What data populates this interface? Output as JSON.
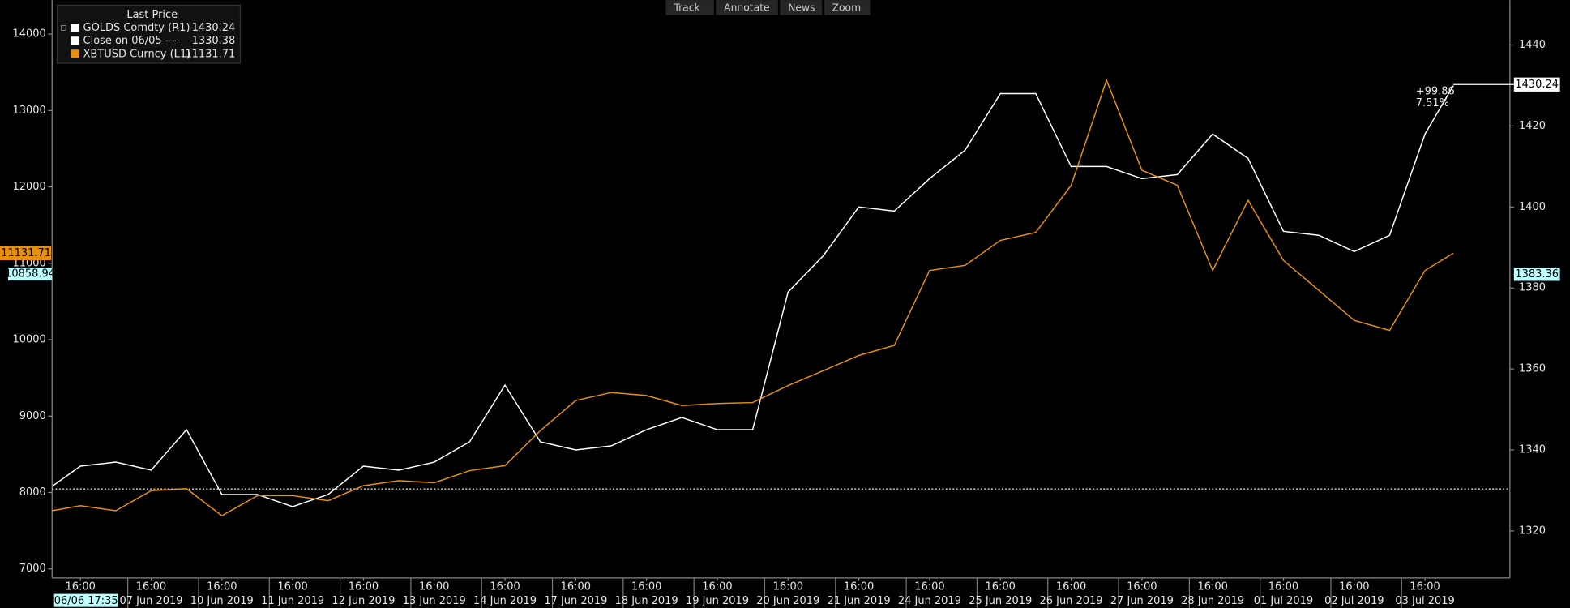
{
  "toolbar": [
    "Track",
    "Annotate",
    "News",
    "Zoom"
  ],
  "chart_data": {
    "type": "line",
    "legend_title": "Last Price",
    "x": [
      -0.4,
      0,
      0.5,
      1,
      1.5,
      2,
      2.5,
      3,
      3.5,
      4,
      4.5,
      5,
      5.5,
      6,
      6.5,
      7,
      7.5,
      8,
      8.5,
      9,
      9.5,
      10,
      10.5,
      11,
      11.5,
      12,
      12.5,
      13,
      13.5,
      14,
      14.5,
      15,
      15.5,
      16,
      16.5,
      17,
      17.5,
      18,
      18.5,
      19,
      19.4
    ],
    "series": [
      {
        "name": "GOLDS Comdty  (R1)",
        "color": "#ffffff",
        "axis": "y2",
        "last": 1430.24,
        "values": [
          1331,
          1336,
          1337,
          1335,
          1345,
          1329,
          1329,
          1326,
          1329,
          1336,
          1335,
          1337,
          1342,
          1356,
          1342,
          1340,
          1341,
          1345,
          1348,
          1345,
          1345,
          1379,
          1388,
          1400,
          1399,
          1407,
          1414,
          1428,
          1428,
          1410,
          1410,
          1407,
          1408,
          1418,
          1412,
          1394,
          1393,
          1389,
          1393,
          1418,
          1430
        ]
      },
      {
        "name": "XBTUSD Curncy  (L1)",
        "color": "#e8900c",
        "last": 11131.71,
        "values": [
          7762,
          7827,
          7762,
          8024,
          8050,
          7696,
          7958,
          7958,
          7893,
          8090,
          8155,
          8128,
          8286,
          8351,
          8810,
          9203,
          9308,
          9269,
          9138,
          9164,
          9177,
          9400,
          9596,
          9793,
          9924,
          10907,
          10973,
          11300,
          11405,
          12021,
          13397,
          12218,
          12021,
          10907,
          11825,
          11038,
          10645,
          10252,
          10121,
          10907,
          11131.71
        ]
      }
    ],
    "reference": {
      "name": "Close on 06/05 ----",
      "value": 1330.38,
      "color": "#ffffff"
    },
    "annotations": [
      "+99.86",
      "7.51%"
    ],
    "cursor": {
      "x_label": "06/06 17:35",
      "y": 10858.94,
      "y2": 1383.36
    },
    "xlim": [
      -0.4,
      20.2
    ],
    "xticks": [
      {
        "value": 0,
        "label": "16:00"
      },
      {
        "value": 1,
        "label": "16:00"
      },
      {
        "value": 2,
        "label": "16:00"
      },
      {
        "value": 3,
        "label": "16:00"
      },
      {
        "value": 4,
        "label": "16:00"
      },
      {
        "value": 5,
        "label": "16:00"
      },
      {
        "value": 6,
        "label": "16:00"
      },
      {
        "value": 7,
        "label": "16:00"
      },
      {
        "value": 8,
        "label": "16:00"
      },
      {
        "value": 9,
        "label": "16:00"
      },
      {
        "value": 10,
        "label": "16:00"
      },
      {
        "value": 11,
        "label": "16:00"
      },
      {
        "value": 12,
        "label": "16:00"
      },
      {
        "value": 13,
        "label": "16:00"
      },
      {
        "value": 14,
        "label": "16:00"
      },
      {
        "value": 15,
        "label": "16:00"
      },
      {
        "value": 16,
        "label": "16:00"
      },
      {
        "value": 17,
        "label": "16:00"
      },
      {
        "value": 18,
        "label": "16:00"
      },
      {
        "value": 19,
        "label": "16:00"
      }
    ],
    "x_date_labels": [
      {
        "value": 1,
        "label": "07 Jun 2019"
      },
      {
        "value": 2,
        "label": "10 Jun 2019"
      },
      {
        "value": 3,
        "label": "11 Jun 2019"
      },
      {
        "value": 4,
        "label": "12 Jun 2019"
      },
      {
        "value": 5,
        "label": "13 Jun 2019"
      },
      {
        "value": 6,
        "label": "14 Jun 2019"
      },
      {
        "value": 7,
        "label": "17 Jun 2019"
      },
      {
        "value": 8,
        "label": "18 Jun 2019"
      },
      {
        "value": 9,
        "label": "19 Jun 2019"
      },
      {
        "value": 10,
        "label": "20 Jun 2019"
      },
      {
        "value": 11,
        "label": "21 Jun 2019"
      },
      {
        "value": 12,
        "label": "24 Jun 2019"
      },
      {
        "value": 13,
        "label": "25 Jun 2019"
      },
      {
        "value": 14,
        "label": "26 Jun 2019"
      },
      {
        "value": 15,
        "label": "27 Jun 2019"
      },
      {
        "value": 16,
        "label": "28 Jun 2019"
      },
      {
        "value": 17,
        "label": "01 Jul 2019"
      },
      {
        "value": 18,
        "label": "02 Jul 2019"
      },
      {
        "value": 19,
        "label": "03 Jul 2019"
      }
    ],
    "ylim": [
      6882,
      14446
    ],
    "yticks": [
      7000,
      8000,
      9000,
      10000,
      11000,
      12000,
      13000,
      14000
    ],
    "y2lim": [
      1308.4,
      1451.1
    ],
    "y2ticks": [
      1320,
      1340,
      1360,
      1380,
      1400,
      1420,
      1440
    ]
  }
}
